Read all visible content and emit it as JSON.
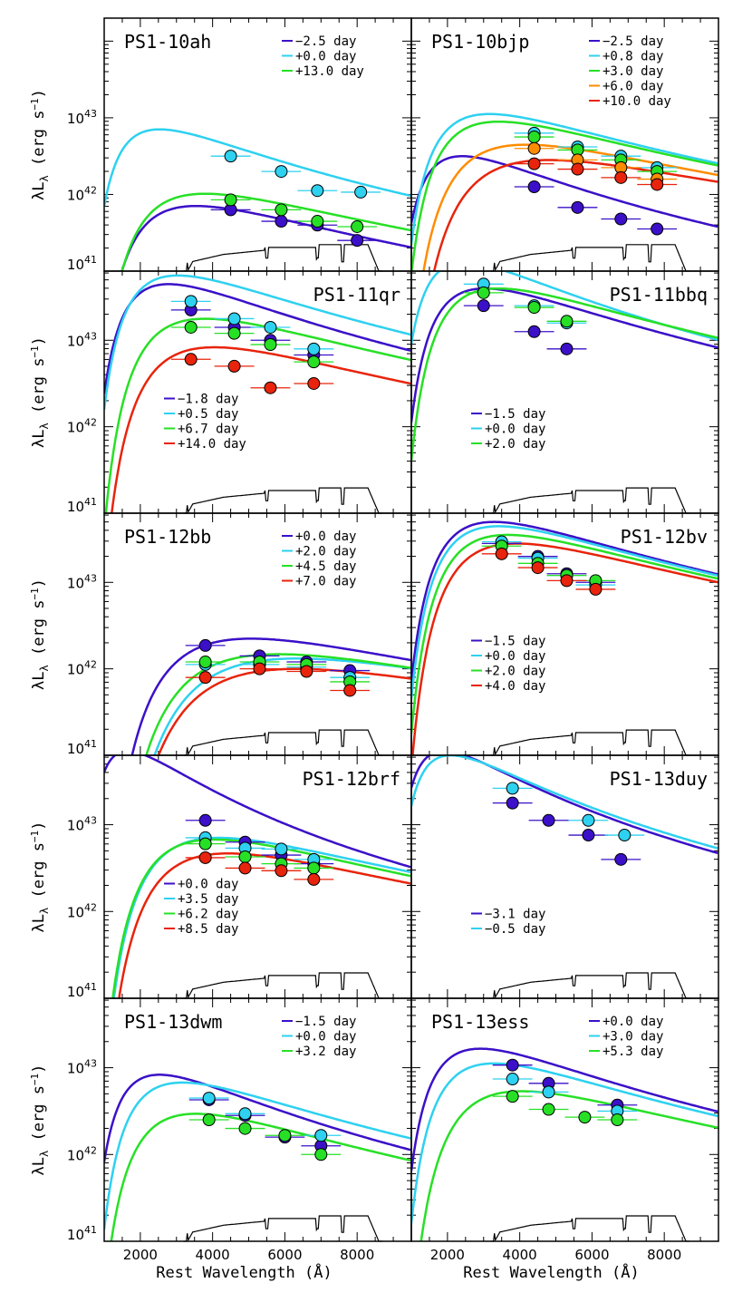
{
  "chart_data": {
    "type": "scatter",
    "xlabel": "Rest Wavelength (Å)",
    "ylabel": "λL",
    "ylabel_sub": "λ",
    "ylabel_units": "(erg s",
    "ylabel_exp": "−1",
    "ylabel_close": ")",
    "x_ticks": [
      "2000",
      "4000",
      "6000",
      "8000"
    ],
    "y_tick_base": "10",
    "y_tick_exponents": [
      "41",
      "42",
      "43"
    ],
    "xlim": [
      1000,
      9500
    ],
    "legend_unit": "day",
    "colors": {
      "purple": "#3b10c8",
      "cyan": "#2ed1f0",
      "green": "#27e026",
      "orange": "#ff8c00",
      "red": "#e8240c"
    },
    "panels": [
      {
        "title": "PS1-10ah",
        "title_pos": "left",
        "legend_pos": "top-right",
        "ylim": [
          41,
          44.3
        ],
        "series": [
          {
            "label": "−2.5 day",
            "color": "purple",
            "peak": 2800,
            "logmax": 41.8,
            "points": [
              [
                4500,
                41.8
              ],
              [
                5900,
                41.65
              ],
              [
                6900,
                41.6
              ],
              [
                8000,
                41.4
              ]
            ]
          },
          {
            "label": "+0.0 day",
            "color": "cyan",
            "peak": 2000,
            "logmax": 42.8,
            "points": [
              [
                4500,
                42.5
              ],
              [
                5900,
                42.3
              ],
              [
                6900,
                42.05
              ],
              [
                8100,
                42.03
              ]
            ]
          },
          {
            "label": "+13.0 day",
            "color": "green",
            "peak": 3000,
            "logmax": 41.96,
            "points": [
              [
                4500,
                41.93
              ],
              [
                5900,
                41.8
              ],
              [
                6900,
                41.65
              ],
              [
                8000,
                41.58
              ]
            ]
          }
        ]
      },
      {
        "title": "PS1-10bjp",
        "title_pos": "left",
        "legend_pos": "top-right",
        "ylim": [
          41,
          44.3
        ],
        "series": [
          {
            "label": "−2.5 day",
            "color": "purple",
            "peak": 1900,
            "logmax": 42.45,
            "points": [
              [
                4400,
                42.1
              ],
              [
                5600,
                41.83
              ],
              [
                6800,
                41.68
              ],
              [
                7800,
                41.55
              ]
            ]
          },
          {
            "label": "+0.8 day",
            "color": "cyan",
            "peak": 2500,
            "logmax": 43.0,
            "points": [
              [
                4400,
                42.8
              ],
              [
                5600,
                42.62
              ],
              [
                6800,
                42.5
              ],
              [
                7800,
                42.35
              ]
            ]
          },
          {
            "label": "+3.0 day",
            "color": "green",
            "peak": 2700,
            "logmax": 42.9,
            "points": [
              [
                4400,
                42.75
              ],
              [
                5600,
                42.58
              ],
              [
                6800,
                42.45
              ],
              [
                7800,
                42.3
              ]
            ]
          },
          {
            "label": "+6.0 day",
            "color": "orange",
            "peak": 3300,
            "logmax": 42.6,
            "points": [
              [
                4400,
                42.6
              ],
              [
                5600,
                42.45
              ],
              [
                6800,
                42.35
              ],
              [
                7800,
                42.2
              ]
            ]
          },
          {
            "label": "+10.0 day",
            "color": "red",
            "peak": 3800,
            "logmax": 42.4,
            "points": [
              [
                4400,
                42.4
              ],
              [
                5600,
                42.33
              ],
              [
                6800,
                42.22
              ],
              [
                7800,
                42.13
              ]
            ]
          }
        ]
      },
      {
        "title": "PS1-11qr",
        "title_pos": "right",
        "legend_pos": "bottom-left",
        "ylim": [
          41,
          43.8
        ],
        "series": [
          {
            "label": "−1.8 day",
            "color": "purple",
            "peak": 2200,
            "logmax": 43.6,
            "points": [
              [
                3400,
                43.35
              ],
              [
                4600,
                43.15
              ],
              [
                5600,
                43.0
              ],
              [
                6800,
                42.83
              ]
            ]
          },
          {
            "label": "+0.5 day",
            "color": "cyan",
            "peak": 2400,
            "logmax": 43.7,
            "points": [
              [
                3400,
                43.45
              ],
              [
                4600,
                43.25
              ],
              [
                5600,
                43.15
              ],
              [
                6800,
                42.9
              ]
            ]
          },
          {
            "label": "+6.7 day",
            "color": "green",
            "peak": 3000,
            "logmax": 43.2,
            "points": [
              [
                3400,
                43.15
              ],
              [
                4600,
                43.08
              ],
              [
                5600,
                42.95
              ],
              [
                6800,
                42.75
              ]
            ]
          },
          {
            "label": "+14.0 day",
            "color": "red",
            "peak": 3200,
            "logmax": 42.87,
            "points": [
              [
                3400,
                42.78
              ],
              [
                4600,
                42.7
              ],
              [
                5600,
                42.45
              ],
              [
                6800,
                42.5
              ]
            ]
          }
        ]
      },
      {
        "title": "PS1-11bbq",
        "title_pos": "right",
        "legend_pos": "bottom-left",
        "ylim": [
          41,
          43.8
        ],
        "series": [
          {
            "label": "−1.5 day",
            "color": "purple",
            "peak": 2400,
            "logmax": 43.55,
            "points": [
              [
                3000,
                43.4
              ],
              [
                4400,
                43.1
              ],
              [
                5300,
                42.9
              ]
            ]
          },
          {
            "label": "+0.0 day",
            "color": "cyan",
            "peak": 1950,
            "logmax": 43.85,
            "points": [
              [
                3000,
                43.65
              ],
              [
                4400,
                43.4
              ],
              [
                5300,
                43.2
              ]
            ]
          },
          {
            "label": "+2.0 day",
            "color": "green",
            "peak": 2700,
            "logmax": 43.55,
            "points": [
              [
                3000,
                43.55
              ],
              [
                4400,
                43.38
              ],
              [
                5300,
                43.22
              ]
            ]
          }
        ]
      },
      {
        "title": "PS1-12bb",
        "title_pos": "left",
        "legend_pos": "top-right",
        "ylim": [
          41,
          43.8
        ],
        "series": [
          {
            "label": "+0.0 day",
            "color": "purple",
            "peak": 4000,
            "logmax": 42.3,
            "points": [
              [
                3800,
                42.27
              ],
              [
                5300,
                42.15
              ],
              [
                6600,
                42.08
              ],
              [
                7800,
                41.98
              ]
            ]
          },
          {
            "label": "+2.0 day",
            "color": "cyan",
            "peak": 5000,
            "logmax": 42.07,
            "points": [
              [
                3800,
                42.05
              ],
              [
                5300,
                42.05
              ],
              [
                6600,
                42.02
              ],
              [
                7800,
                41.9
              ]
            ]
          },
          {
            "label": "+4.5 day",
            "color": "green",
            "peak": 4600,
            "logmax": 42.12,
            "points": [
              [
                3800,
                42.08
              ],
              [
                5300,
                42.08
              ],
              [
                6600,
                42.05
              ],
              [
                7800,
                41.85
              ]
            ]
          },
          {
            "label": "+7.0 day",
            "color": "red",
            "peak": 5000,
            "logmax": 41.95,
            "points": [
              [
                3800,
                41.9
              ],
              [
                5300,
                42.0
              ],
              [
                6600,
                41.97
              ],
              [
                7800,
                41.75
              ]
            ]
          }
        ]
      },
      {
        "title": "PS1-12bv",
        "title_pos": "right",
        "legend_pos": "bottom-left",
        "ylim": [
          41,
          43.8
        ],
        "series": [
          {
            "label": "−1.5 day",
            "color": "purple",
            "peak": 2600,
            "logmax": 43.65,
            "points": [
              [
                3500,
                43.45
              ],
              [
                4500,
                43.3
              ],
              [
                5300,
                43.1
              ],
              [
                6100,
                43.0
              ]
            ]
          },
          {
            "label": "+0.0 day",
            "color": "cyan",
            "peak": 2700,
            "logmax": 43.6,
            "points": [
              [
                3500,
                43.47
              ],
              [
                4500,
                43.28
              ],
              [
                5300,
                43.08
              ],
              [
                6100,
                42.97
              ]
            ]
          },
          {
            "label": "+2.0 day",
            "color": "green",
            "peak": 2900,
            "logmax": 43.5,
            "points": [
              [
                3500,
                43.42
              ],
              [
                4500,
                43.22
              ],
              [
                5300,
                43.08
              ],
              [
                6100,
                43.02
              ]
            ]
          },
          {
            "label": "+4.0 day",
            "color": "red",
            "peak": 3100,
            "logmax": 43.4,
            "points": [
              [
                3500,
                43.33
              ],
              [
                4500,
                43.17
              ],
              [
                5300,
                43.02
              ],
              [
                6100,
                42.92
              ]
            ]
          }
        ]
      },
      {
        "title": "PS1-12brf",
        "title_pos": "right",
        "legend_pos": "bottom-left",
        "ylim": [
          41,
          43.8
        ],
        "series": [
          {
            "label": "+0.0 day",
            "color": "purple",
            "peak": 1300,
            "logmax": 43.8,
            "points": [
              [
                3800,
                43.05
              ],
              [
                4900,
                42.8
              ],
              [
                5900,
                42.65
              ],
              [
                6800,
                42.55
              ]
            ]
          },
          {
            "label": "+3.5 day",
            "color": "cyan",
            "peak": 3300,
            "logmax": 42.8,
            "points": [
              [
                3800,
                42.85
              ],
              [
                4900,
                42.73
              ],
              [
                5900,
                42.72
              ],
              [
                6800,
                42.6
              ]
            ]
          },
          {
            "label": "+6.2 day",
            "color": "green",
            "peak": 3200,
            "logmax": 42.78,
            "points": [
              [
                3800,
                42.78
              ],
              [
                4900,
                42.63
              ],
              [
                5900,
                42.55
              ],
              [
                6800,
                42.5
              ]
            ]
          },
          {
            "label": "+8.5 day",
            "color": "red",
            "peak": 3500,
            "logmax": 42.62,
            "points": [
              [
                3800,
                42.62
              ],
              [
                4900,
                42.5
              ],
              [
                5900,
                42.47
              ],
              [
                6800,
                42.37
              ]
            ]
          }
        ]
      },
      {
        "title": "PS1-13duy",
        "title_pos": "right",
        "legend_pos": "bottom-left",
        "ylim": [
          41,
          43.8
        ],
        "series": [
          {
            "label": "−3.1 day",
            "color": "purple",
            "peak": 1500,
            "logmax": 43.8,
            "points": [
              [
                3800,
                43.25
              ],
              [
                4800,
                43.05
              ],
              [
                5900,
                42.88
              ],
              [
                6800,
                42.6
              ]
            ]
          },
          {
            "label": "−0.5 day",
            "color": "cyan",
            "peak": 1650,
            "logmax": 43.75,
            "points": [
              [
                3800,
                43.42
              ],
              [
                5900,
                43.05
              ],
              [
                6900,
                42.88
              ]
            ]
          }
        ]
      },
      {
        "title": "PS1-13dwm",
        "title_pos": "left",
        "legend_pos": "top-right",
        "ylim": [
          41,
          43.8
        ],
        "series": [
          {
            "label": "−1.5 day",
            "color": "purple",
            "peak": 2000,
            "logmax": 42.87,
            "points": [
              [
                3900,
                42.63
              ],
              [
                4900,
                42.45
              ],
              [
                6000,
                42.2
              ],
              [
                7000,
                42.1
              ]
            ]
          },
          {
            "label": "+0.0 day",
            "color": "cyan",
            "peak": 2500,
            "logmax": 42.78,
            "points": [
              [
                3900,
                42.65
              ],
              [
                4900,
                42.47
              ],
              [
                7000,
                42.22
              ]
            ]
          },
          {
            "label": "+3.2 day",
            "color": "green",
            "peak": 2800,
            "logmax": 42.42,
            "points": [
              [
                3900,
                42.4
              ],
              [
                4900,
                42.3
              ],
              [
                6000,
                42.22
              ],
              [
                7000,
                42.0
              ]
            ]
          }
        ]
      },
      {
        "title": "PS1-13ess",
        "title_pos": "left",
        "legend_pos": "top-right",
        "ylim": [
          41,
          43.8
        ],
        "series": [
          {
            "label": "+0.0 day",
            "color": "purple",
            "peak": 2300,
            "logmax": 43.17,
            "points": [
              [
                3800,
                43.03
              ],
              [
                4800,
                42.82
              ],
              [
                6700,
                42.57
              ]
            ]
          },
          {
            "label": "+3.0 day",
            "color": "cyan",
            "peak": 2600,
            "logmax": 43.0,
            "points": [
              [
                3800,
                42.87
              ],
              [
                4800,
                42.72
              ],
              [
                6700,
                42.5
              ]
            ]
          },
          {
            "label": "+5.3 day",
            "color": "green",
            "peak": 3200,
            "logmax": 42.68,
            "points": [
              [
                3800,
                42.67
              ],
              [
                4800,
                42.52
              ],
              [
                5800,
                42.43
              ],
              [
                6700,
                42.4
              ]
            ]
          }
        ]
      }
    ]
  }
}
